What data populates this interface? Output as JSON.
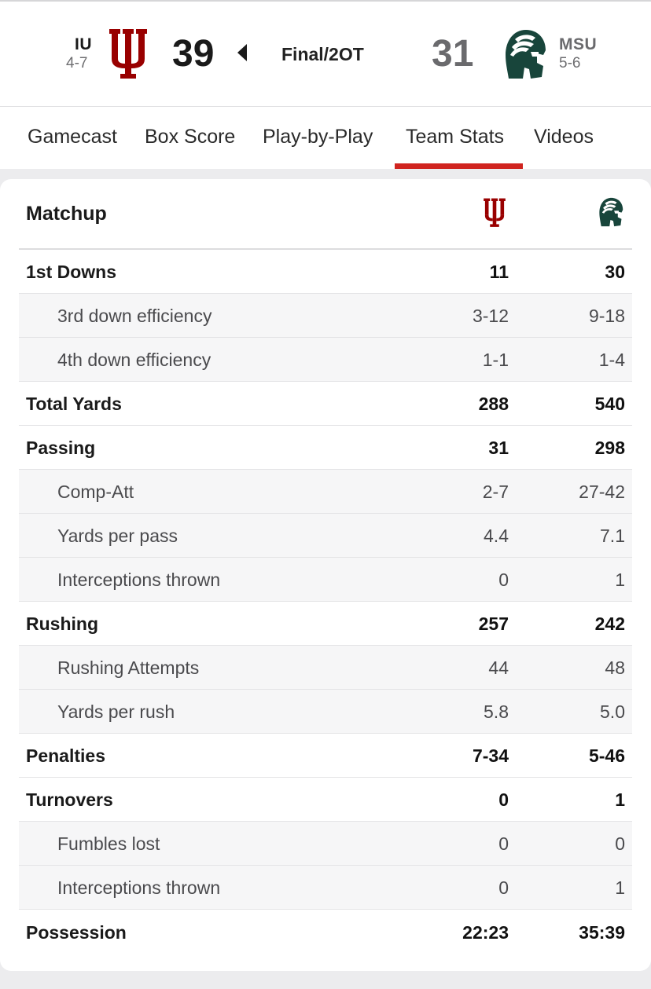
{
  "colors": {
    "iu_crimson": "#990000",
    "msu_green": "#18453B",
    "tab_accent": "#d0241f"
  },
  "scoreboard": {
    "home": {
      "abbr": "IU",
      "record": "4-7",
      "score": "39",
      "logo_icon": "iu-trident-icon"
    },
    "away": {
      "abbr": "MSU",
      "record": "5-6",
      "score": "31",
      "logo_icon": "spartan-helmet-icon"
    },
    "status": "Final/2OT",
    "winner_indicator_icon": "winner-arrow-icon"
  },
  "tabs": [
    {
      "label": "Gamecast"
    },
    {
      "label": "Box Score"
    },
    {
      "label": "Play-by-Play"
    },
    {
      "label": "Team Stats",
      "active": true
    },
    {
      "label": "Videos"
    }
  ],
  "stats": {
    "title": "Matchup",
    "rows": [
      {
        "label": "1st Downs",
        "iu": "11",
        "msu": "30",
        "level": "main"
      },
      {
        "label": "3rd down efficiency",
        "iu": "3-12",
        "msu": "9-18",
        "level": "sub"
      },
      {
        "label": "4th down efficiency",
        "iu": "1-1",
        "msu": "1-4",
        "level": "sub"
      },
      {
        "label": "Total Yards",
        "iu": "288",
        "msu": "540",
        "level": "main"
      },
      {
        "label": "Passing",
        "iu": "31",
        "msu": "298",
        "level": "main"
      },
      {
        "label": "Comp-Att",
        "iu": "2-7",
        "msu": "27-42",
        "level": "sub"
      },
      {
        "label": "Yards per pass",
        "iu": "4.4",
        "msu": "7.1",
        "level": "sub"
      },
      {
        "label": "Interceptions thrown",
        "iu": "0",
        "msu": "1",
        "level": "sub"
      },
      {
        "label": "Rushing",
        "iu": "257",
        "msu": "242",
        "level": "main"
      },
      {
        "label": "Rushing Attempts",
        "iu": "44",
        "msu": "48",
        "level": "sub"
      },
      {
        "label": "Yards per rush",
        "iu": "5.8",
        "msu": "5.0",
        "level": "sub"
      },
      {
        "label": "Penalties",
        "iu": "7-34",
        "msu": "5-46",
        "level": "main"
      },
      {
        "label": "Turnovers",
        "iu": "0",
        "msu": "1",
        "level": "main"
      },
      {
        "label": "Fumbles lost",
        "iu": "0",
        "msu": "0",
        "level": "sub"
      },
      {
        "label": "Interceptions thrown",
        "iu": "0",
        "msu": "1",
        "level": "sub"
      },
      {
        "label": "Possession",
        "iu": "22:23",
        "msu": "35:39",
        "level": "main"
      }
    ]
  }
}
